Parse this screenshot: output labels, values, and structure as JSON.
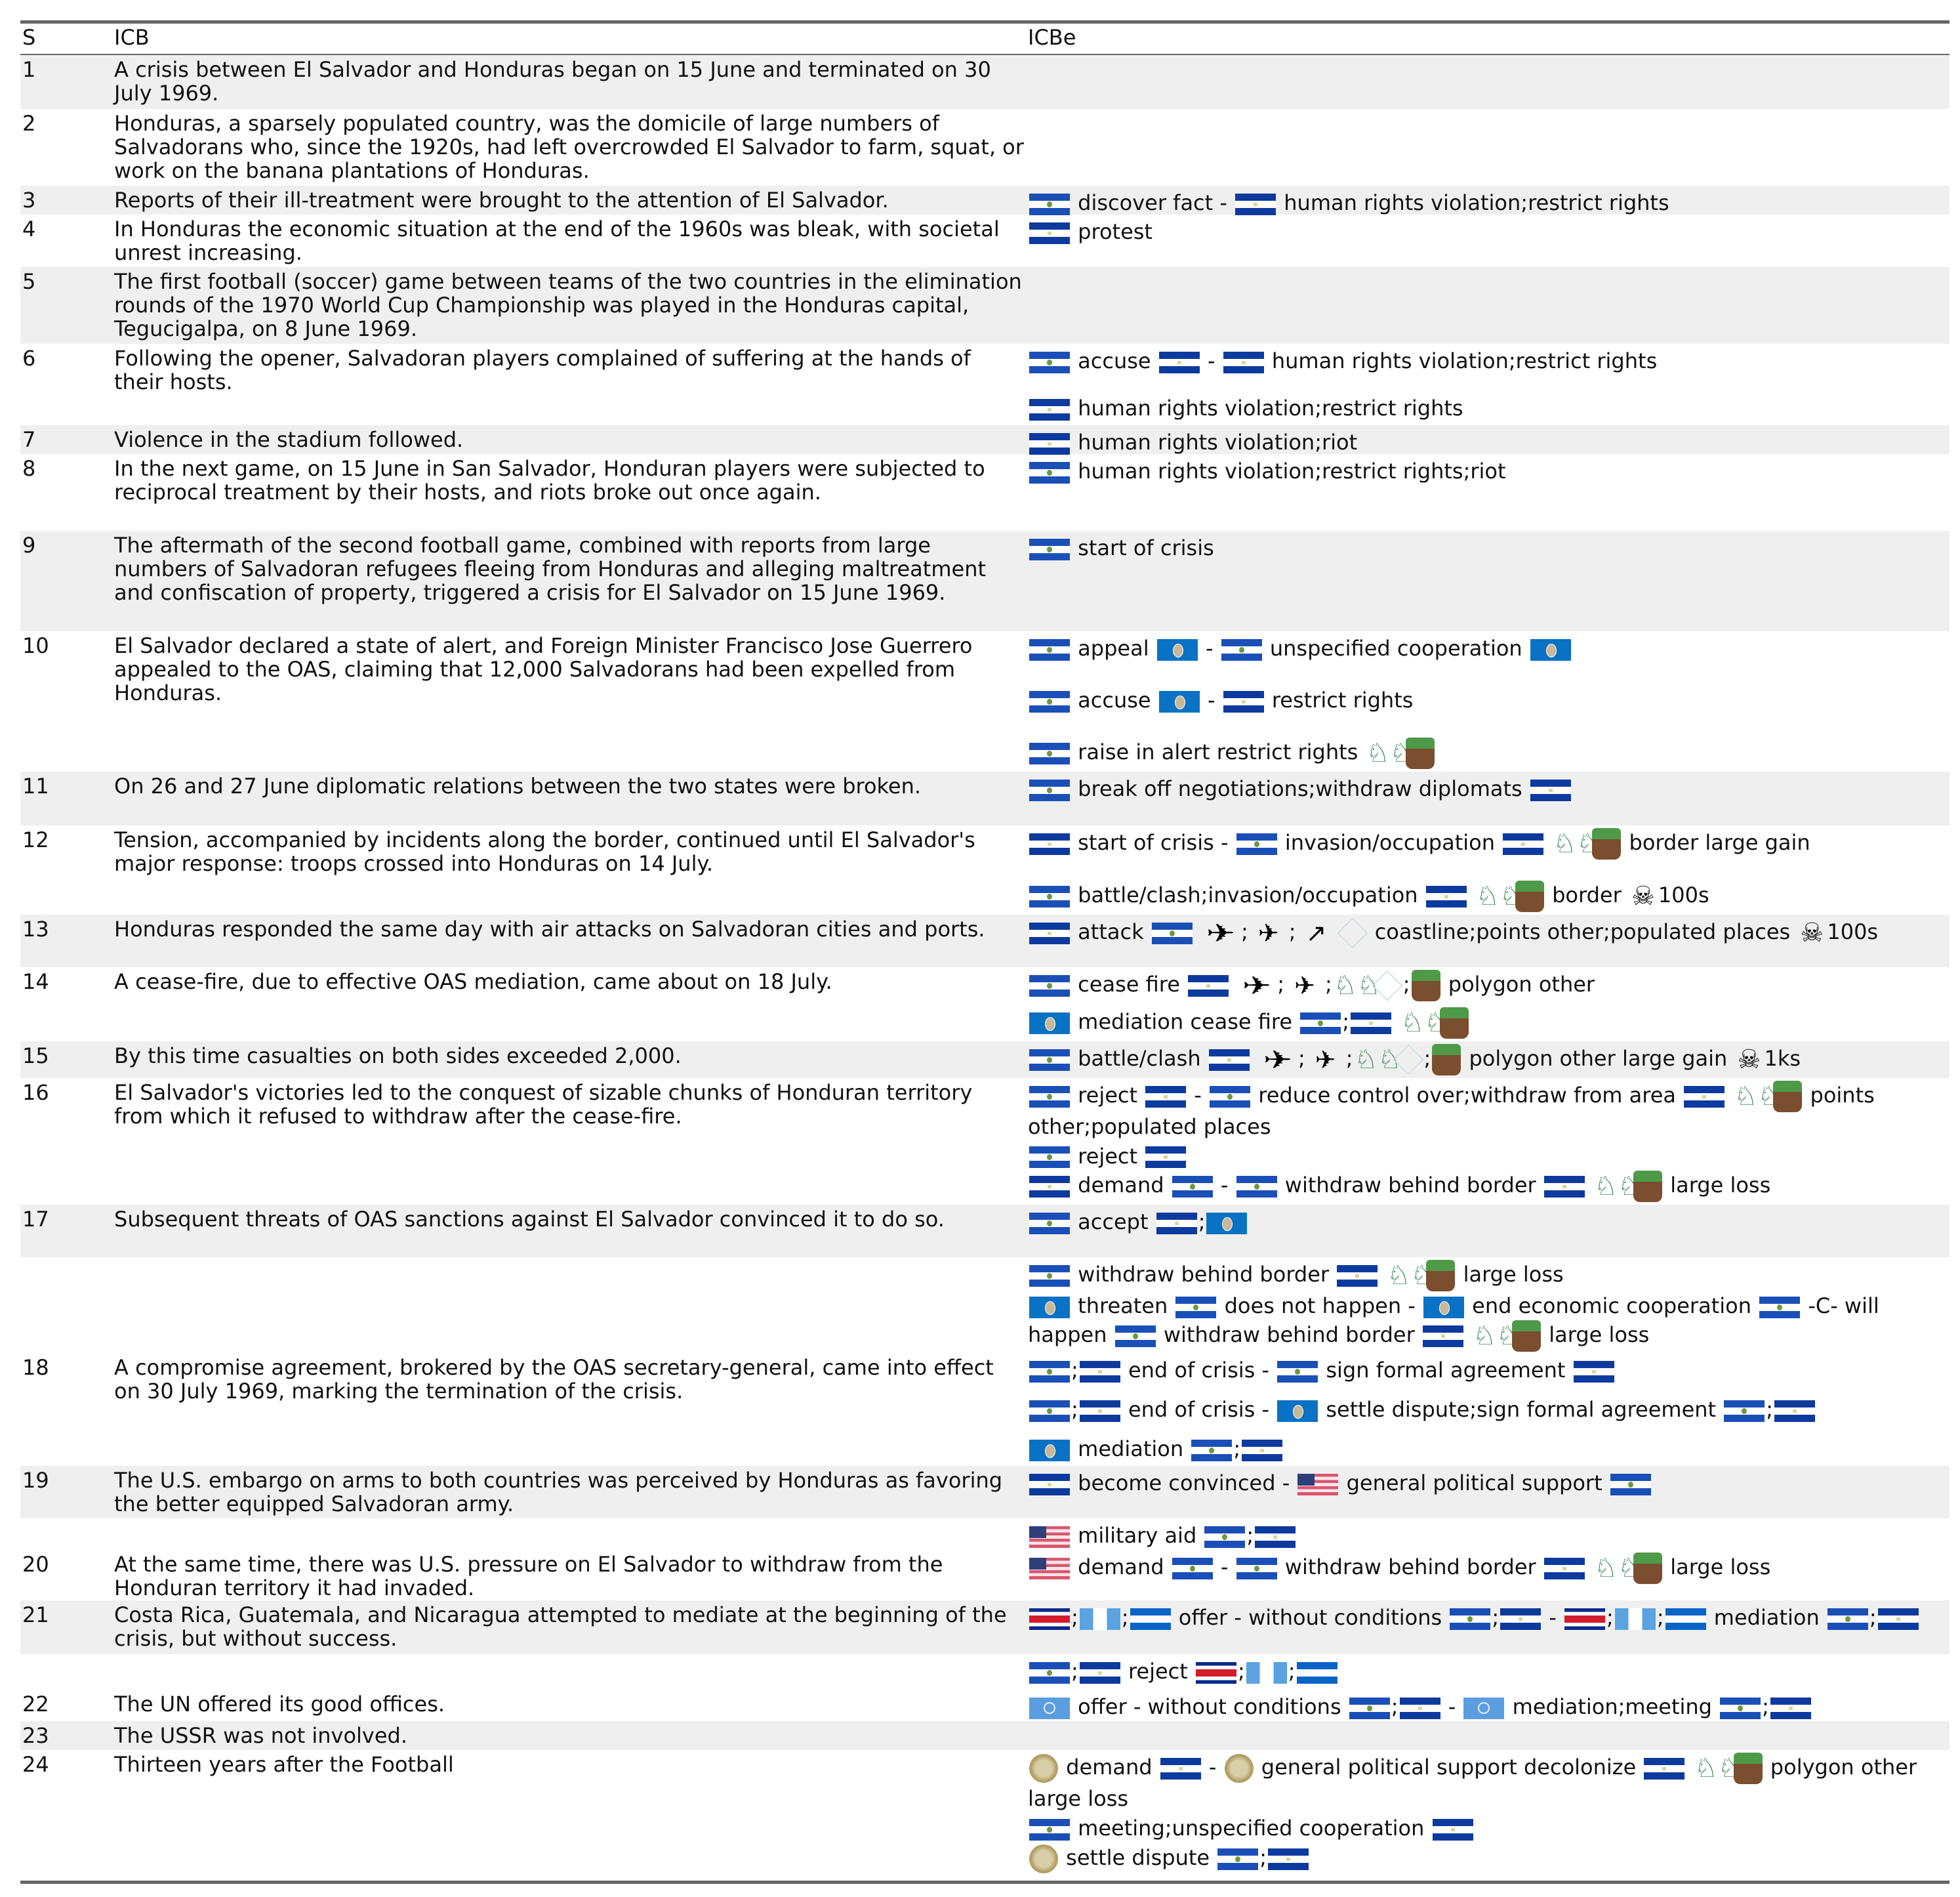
{
  "header": {
    "s": "S",
    "icb": "ICB",
    "icbe": "ICBe"
  },
  "icons": {
    "sv": "el-salvador-flag-icon",
    "hn": "honduras-flag-icon",
    "oas": "oas-flag-icon",
    "us": "us-flag-icon",
    "cr": "costa-rica-flag-icon",
    "gt": "guatemala-flag-icon",
    "ni": "nicaragua-flag-icon",
    "un": "un-flag-icon",
    "coin": "emblem-coin-icon",
    "troops": "soldiers-icon",
    "land": "land-block-icon",
    "plane": "airplane-icon",
    "jet": "jet-icon",
    "missile": "missile-icon",
    "map": "map-cube-icon",
    "skull": "skull-crossbones-icon"
  },
  "rows": [
    {
      "s": "1",
      "icb": "A crisis between El Salvador and Honduras began on 15 June and terminated on 30 July 1969.",
      "events": []
    },
    {
      "s": "2",
      "icb": "Honduras, a sparsely populated country, was the domicile of large numbers of Salvadorans who, since the 1920s, had left overcrowded El Salvador to farm, squat, or work on the banana plantations of Honduras.",
      "events": []
    },
    {
      "s": "3",
      "icb": "Reports of their ill-treatment were brought to the attention of El Salvador.",
      "events": [
        "[sv] discover fact - [hn] human rights violation;restrict rights"
      ]
    },
    {
      "s": "4",
      "icb": "In Honduras the economic situation at the end of the 1960s was bleak, with societal unrest increasing.",
      "events": [
        "[hn] protest"
      ]
    },
    {
      "s": "5",
      "icb": "The first football (soccer) game between teams of the two countries in the elimination rounds of the 1970 World Cup Championship was played in the Honduras capital, Tegucigalpa, on 8 June 1969.",
      "events": []
    },
    {
      "s": "6",
      "icb": "Following the opener, Salvadoran players complained of suffering at the hands of their hosts.",
      "events": [
        "[sv] accuse [hn] - [hn] human rights violation;restrict rights",
        "[hn] human rights violation;restrict rights"
      ]
    },
    {
      "s": "7",
      "icb": "Violence in the stadium followed.",
      "events": [
        "[hn] human rights violation;riot"
      ]
    },
    {
      "s": "8",
      "icb": "In the next game, on 15 June in San Salvador, Honduran players were subjected to reciprocal treatment by their hosts, and riots broke out once again.",
      "events": [
        "[sv] human rights violation;restrict rights;riot"
      ]
    },
    {
      "s": "9",
      "icb": "The aftermath of the second football game, combined with reports from large numbers of Salvadoran refugees fleeing from Honduras and alleging maltreatment and confiscation of property, triggered a crisis for El Salvador on 15 June 1969.",
      "events": [
        "[sv] start of crisis"
      ]
    },
    {
      "s": "10",
      "icb": "El Salvador declared a state of alert, and Foreign Minister Francisco Jose Guerrero appealed to the OAS, claiming that 12,000 Salvadorans had been expelled from Honduras.",
      "events": [
        "[sv] appeal [oas] - [sv] unspecified cooperation [oas]",
        "[sv] accuse [oas] - [hn] restrict rights",
        "[sv] raise in alert restrict rights [troops][land]"
      ]
    },
    {
      "s": "11",
      "icb": "On 26 and 27 June diplomatic relations between the two states were broken.",
      "events": [
        "[sv] break off negotiations;withdraw diplomats [hn]"
      ]
    },
    {
      "s": "12",
      "icb": "Tension, accompanied by incidents along the border, continued until El Salvador's major response: troops crossed into Honduras on 14 July.",
      "events": [
        "[hn] start of crisis - [sv] invasion/occupation [hn] [troops][land] border large gain",
        "[sv] battle/clash;invasion/occupation [hn] [troops][land] border [skull]100s"
      ]
    },
    {
      "s": "13",
      "icb": "Honduras responded the same day with air attacks on Salvadoran cities and ports.",
      "events": [
        "[hn] attack [sv] [plane];[jet];[missile][map] coastline;points other;populated places [skull]100s"
      ]
    },
    {
      "s": "14",
      "icb": "A cease-fire, due to effective OAS mediation, came about on 18 July.",
      "events": [
        "[sv] cease fire [hn] [plane];[jet];[troops][map];[land] polygon other",
        "[oas] mediation cease fire [sv];[hn] [troops][land]"
      ]
    },
    {
      "s": "15",
      "icb": "By this time casualties on both sides exceeded 2,000.",
      "events": [
        "[sv] battle/clash [hn] [plane];[jet];[troops][map];[land] polygon other large gain [skull]1ks"
      ]
    },
    {
      "s": "16",
      "icb": "El Salvador's victories led to the conquest of sizable chunks of Honduran territory from which it refused to withdraw after the cease-fire.",
      "events": [
        "[sv] reject [hn] - [sv] reduce control over;withdraw from area [hn] [troops][land] points other;populated places",
        "[sv] reject [hn]",
        "[hn] demand [sv] - [sv] withdraw behind border [hn] [troops][land] large loss"
      ]
    },
    {
      "s": "17",
      "icb": "Subsequent threats of OAS sanctions against El Salvador convinced it to do so.",
      "events": [
        "[sv] accept [hn];[oas]"
      ]
    },
    {
      "s": "",
      "icb": "",
      "events": [
        "[sv] withdraw behind border [hn] [troops][land] large loss",
        "[oas] threaten [sv] does not happen - [oas] end economic cooperation [sv] -C- will happen [sv] withdraw behind border [hn] [troops][land] large loss"
      ]
    },
    {
      "s": "18",
      "icb": "A compromise agreement, brokered by the OAS secretary-general, came into effect on 30 July 1969, marking the termination of the crisis.",
      "events": [
        "[sv];[hn] end of crisis - [sv] sign formal agreement [hn]",
        "[sv];[hn] end of crisis - [oas] settle dispute;sign formal agreement [sv];[hn]",
        "[oas] mediation [sv];[hn]"
      ]
    },
    {
      "s": "19",
      "icb": "The U.S. embargo on arms to both countries was perceived by Honduras as favoring the better equipped Salvadoran army.",
      "events": [
        "[hn] become convinced - [us] general political support [sv]"
      ]
    },
    {
      "s": "",
      "icb": "",
      "events": [
        "[us] military aid [sv];[hn]"
      ]
    },
    {
      "s": "20",
      "icb": "At the same time, there was U.S. pressure on El Salvador to withdraw from the Honduran territory it had invaded.",
      "events": [
        "[us] demand [sv] - [sv] withdraw behind border [hn] [troops][land] large loss"
      ]
    },
    {
      "s": "21",
      "icb": "Costa Rica, Guatemala, and Nicaragua attempted to mediate at the beginning of the crisis, but without success.",
      "events": [
        "[cr];[gt];[ni] offer - without conditions [sv];[hn] - [cr];[gt];[ni] mediation [sv];[hn]"
      ]
    },
    {
      "s": "",
      "icb": "",
      "events": [
        "[sv];[hn] reject [cr];[gt];[ni]"
      ]
    },
    {
      "s": "22",
      "icb": "The UN offered its good offices.",
      "events": [
        "[un] offer - without conditions [sv];[hn] - [un] mediation;meeting [sv];[hn]"
      ]
    },
    {
      "s": "23",
      "icb": "The USSR was not involved.",
      "events": []
    },
    {
      "s": "24",
      "icb": "Thirteen years after the Football",
      "events": [
        "[coin] demand [hn] - [coin] general political support decolonize [hn] [troops][land] polygon other large loss",
        "[sv] meeting;unspecified cooperation [hn]",
        "[coin] settle dispute [sv];[hn]"
      ]
    }
  ]
}
